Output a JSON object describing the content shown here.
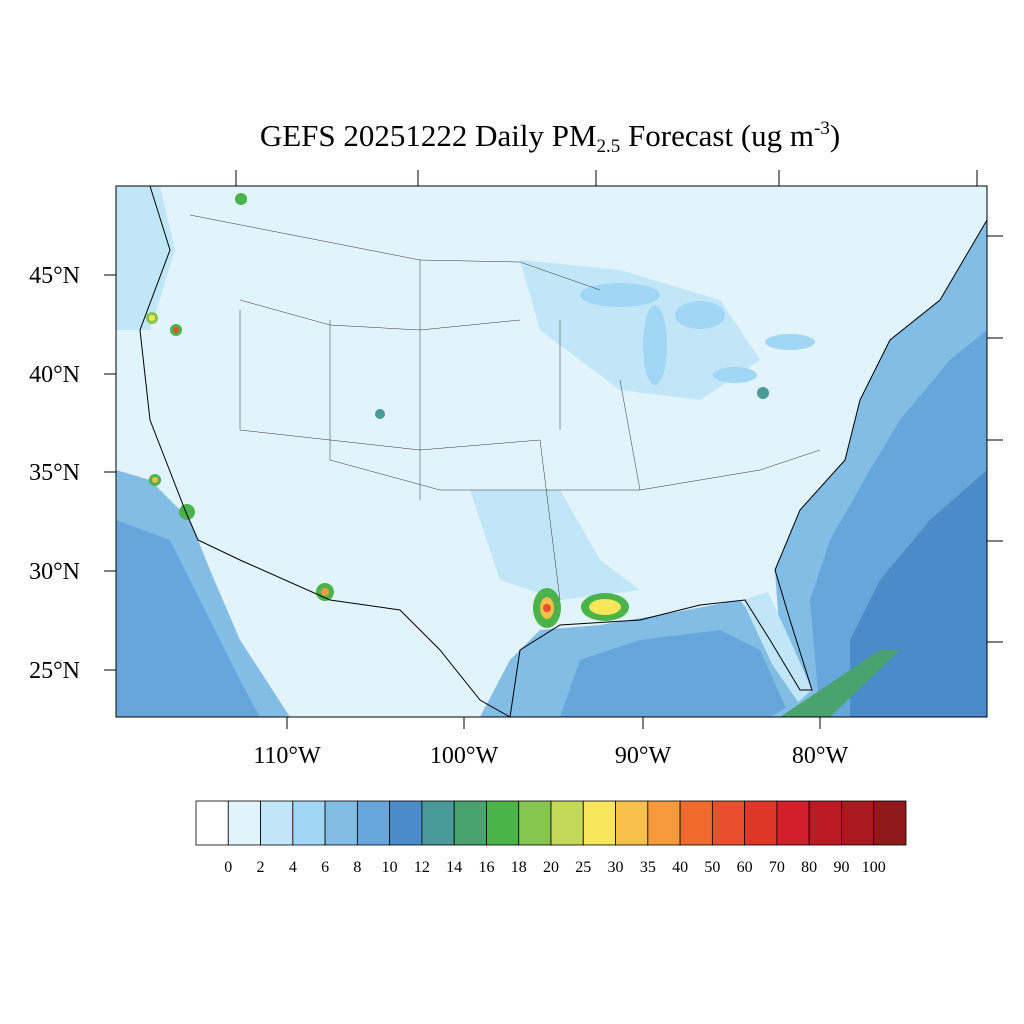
{
  "title": {
    "main": "GEFS 20251222 Daily PM",
    "sub": "2.5",
    "mid": " Forecast (ug m",
    "sup": "-3",
    "end": ")"
  },
  "lat_labels": [
    "45°N",
    "40°N",
    "35°N",
    "30°N",
    "25°N"
  ],
  "lon_labels": [
    "110°W",
    "100°W",
    "90°W",
    "80°W"
  ],
  "colorbar": {
    "labels": [
      0,
      2,
      4,
      6,
      8,
      10,
      12,
      14,
      16,
      18,
      20,
      25,
      30,
      35,
      40,
      50,
      60,
      70,
      80,
      90,
      100
    ],
    "colors": [
      "#ffffff",
      "#e1f3fb",
      "#c0e6f7",
      "#a1d7f4",
      "#82bde6",
      "#67a6da",
      "#4a8bc9",
      "#4a9a9a",
      "#4aa36e",
      "#4ab34a",
      "#86c54f",
      "#c4d95a",
      "#f7e55a",
      "#f7c04a",
      "#f79a3e",
      "#f26b2e",
      "#e8502d",
      "#de3728",
      "#d21f2a",
      "#bb1a25",
      "#a81a20",
      "#8f1a1c"
    ]
  }
}
